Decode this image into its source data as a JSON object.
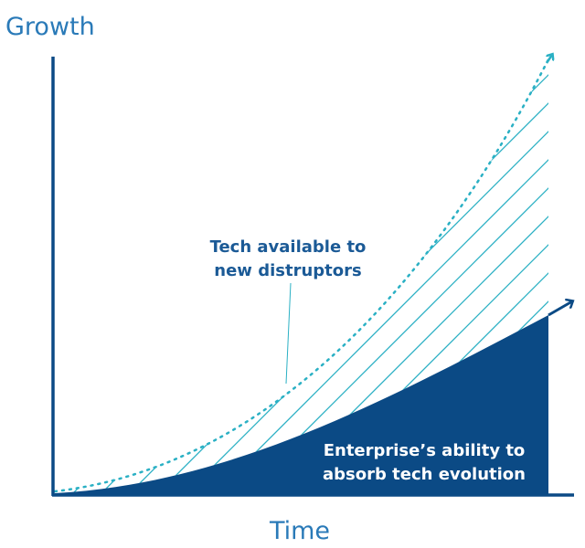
{
  "axes": {
    "y_label": "Growth",
    "x_label": "Time"
  },
  "annotations": [
    {
      "lines": [
        "Tech available to",
        "new distruptors"
      ]
    },
    {
      "lines": [
        "Enterprise’s ability to",
        "absorb tech evolution"
      ]
    }
  ]
}
